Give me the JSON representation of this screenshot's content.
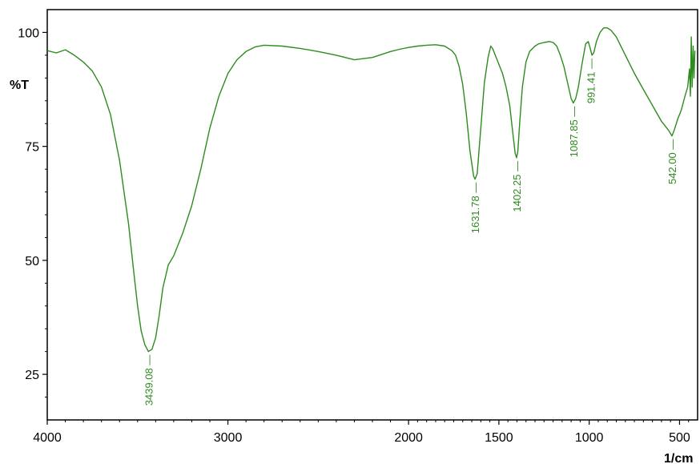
{
  "chart_data": {
    "type": "line",
    "title": "",
    "xlabel": "1/cm",
    "ylabel": "%T",
    "xlim": [
      4000,
      400
    ],
    "ylim": [
      15,
      105
    ],
    "x_reversed": true,
    "grid": false,
    "x_ticks": [
      4000,
      3000,
      2000,
      1500,
      1000,
      500
    ],
    "x_tick_labels": [
      "4000",
      "3000",
      "2000",
      "1500",
      "1000",
      "500"
    ],
    "y_ticks": [
      25,
      50,
      75,
      100
    ],
    "y_tick_labels": [
      "25",
      "50",
      "75",
      "100"
    ],
    "colors": {
      "series": "#2e8b1e",
      "axis": "#000000"
    },
    "series": [
      {
        "x": [
          4000,
          3950,
          3900,
          3850,
          3800,
          3750,
          3700,
          3650,
          3600,
          3550,
          3520,
          3500,
          3480,
          3460,
          3440,
          3420,
          3400,
          3380,
          3360,
          3330,
          3300,
          3250,
          3200,
          3150,
          3100,
          3050,
          3000,
          2950,
          2900,
          2850,
          2800,
          2700,
          2600,
          2500,
          2400,
          2300,
          2200,
          2100,
          2050,
          2000,
          1950,
          1900,
          1850,
          1800,
          1760,
          1740,
          1720,
          1700,
          1680,
          1660,
          1640,
          1632,
          1620,
          1600,
          1580,
          1560,
          1545,
          1535,
          1520,
          1500,
          1480,
          1460,
          1440,
          1420,
          1410,
          1402,
          1395,
          1385,
          1370,
          1350,
          1330,
          1300,
          1280,
          1250,
          1220,
          1200,
          1180,
          1160,
          1140,
          1120,
          1100,
          1088,
          1075,
          1060,
          1040,
          1020,
          1005,
          991,
          985,
          975,
          960,
          940,
          920,
          900,
          880,
          850,
          800,
          750,
          700,
          650,
          600,
          580,
          560,
          550,
          542,
          530,
          510,
          490,
          470,
          455,
          445,
          440,
          435,
          430,
          425,
          420,
          415
        ],
        "y": [
          96.0,
          95.5,
          96.2,
          95.0,
          93.5,
          91.5,
          88.0,
          82.0,
          72.0,
          58.0,
          47.0,
          40.0,
          34.5,
          31.5,
          30.0,
          30.5,
          33.0,
          38.0,
          44.0,
          49.0,
          51.0,
          56.0,
          62.0,
          70.0,
          79.0,
          86.0,
          91.0,
          94.0,
          95.8,
          96.8,
          97.2,
          97.0,
          96.5,
          95.8,
          95.0,
          94.0,
          94.5,
          95.8,
          96.3,
          96.7,
          97.0,
          97.2,
          97.3,
          97.0,
          96.0,
          95.0,
          92.5,
          88.5,
          82.0,
          74.0,
          68.5,
          67.8,
          69.0,
          79.0,
          89.0,
          94.5,
          97.0,
          96.5,
          95.0,
          93.0,
          91.0,
          88.0,
          84.0,
          77.0,
          73.5,
          72.5,
          74.0,
          80.0,
          88.0,
          93.5,
          95.8,
          97.0,
          97.5,
          97.8,
          98.0,
          97.8,
          97.0,
          95.0,
          92.5,
          89.0,
          85.5,
          84.5,
          85.5,
          88.0,
          93.0,
          97.5,
          98.0,
          96.0,
          95.0,
          95.5,
          98.0,
          100.0,
          101.0,
          101.0,
          100.5,
          99.0,
          95.0,
          91.0,
          87.5,
          84.0,
          80.5,
          79.5,
          78.5,
          77.8,
          77.3,
          78.5,
          81.0,
          83.0,
          86.0,
          88.0,
          92.0,
          86.0,
          99.0,
          88.0,
          97.0,
          90.0,
          96.0
        ]
      }
    ],
    "annotations": [
      {
        "x": 3439.08,
        "y": 30.0,
        "text": "3439.08"
      },
      {
        "x": 1631.78,
        "y": 67.8,
        "text": "1631.78"
      },
      {
        "x": 1402.25,
        "y": 72.5,
        "text": "1402.25"
      },
      {
        "x": 1087.85,
        "y": 84.5,
        "text": "1087.85"
      },
      {
        "x": 991.41,
        "y": 95.0,
        "text": "991.41"
      },
      {
        "x": 542.0,
        "y": 77.3,
        "text": "542.00"
      }
    ]
  }
}
